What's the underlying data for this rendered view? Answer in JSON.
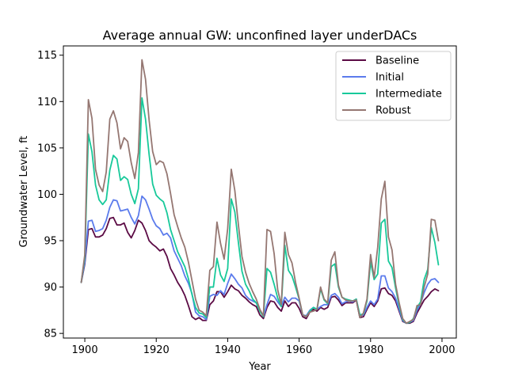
{
  "chart_data": {
    "type": "line",
    "title": "Average annual GW: unconfined layer underDACs",
    "xlabel": "Year",
    "ylabel": "Groundwater Level, ft",
    "xlim": [
      1894,
      2004
    ],
    "ylim": [
      84.5,
      116
    ],
    "xticks": [
      1900,
      1920,
      1940,
      1960,
      1980,
      2000
    ],
    "yticks": [
      85,
      90,
      95,
      100,
      105,
      110,
      115
    ],
    "legend_position": "top-right",
    "x": [
      1899,
      1900,
      1901,
      1902,
      1903,
      1904,
      1905,
      1906,
      1907,
      1908,
      1909,
      1910,
      1911,
      1912,
      1913,
      1914,
      1915,
      1916,
      1917,
      1918,
      1919,
      1920,
      1921,
      1922,
      1923,
      1924,
      1925,
      1926,
      1927,
      1928,
      1929,
      1930,
      1931,
      1932,
      1933,
      1934,
      1935,
      1936,
      1937,
      1938,
      1939,
      1940,
      1941,
      1942,
      1943,
      1944,
      1945,
      1946,
      1947,
      1948,
      1949,
      1950,
      1951,
      1952,
      1953,
      1954,
      1955,
      1956,
      1957,
      1958,
      1959,
      1960,
      1961,
      1962,
      1963,
      1964,
      1965,
      1966,
      1967,
      1968,
      1969,
      1970,
      1971,
      1972,
      1973,
      1974,
      1975,
      1976,
      1977,
      1978,
      1979,
      1980,
      1981,
      1982,
      1983,
      1984,
      1985,
      1986,
      1987,
      1988,
      1989,
      1990,
      1991,
      1992,
      1993,
      1994,
      1995,
      1996,
      1997,
      1998,
      1999
    ],
    "series": [
      {
        "name": "Baseline",
        "color": "#5b0a44",
        "values": [
          90.5,
          92.5,
          96.2,
          96.3,
          95.4,
          95.4,
          95.6,
          96.3,
          97.4,
          97.5,
          96.7,
          96.7,
          96.9,
          95.9,
          95.3,
          96.1,
          97.2,
          96.9,
          96.1,
          95.0,
          94.6,
          94.3,
          93.9,
          94.1,
          93.3,
          92.0,
          91.3,
          90.5,
          89.9,
          89.1,
          88.0,
          86.8,
          86.5,
          86.7,
          86.4,
          86.4,
          88.1,
          88.5,
          89.5,
          89.5,
          88.9,
          89.5,
          90.2,
          89.8,
          89.6,
          89.1,
          88.8,
          88.4,
          88.1,
          87.9,
          87.0,
          86.6,
          87.8,
          88.5,
          88.4,
          87.8,
          87.4,
          88.5,
          87.9,
          88.3,
          88.3,
          87.7,
          86.8,
          86.6,
          87.3,
          87.6,
          87.4,
          87.8,
          87.6,
          87.8,
          88.9,
          89.0,
          88.6,
          88.0,
          88.3,
          88.3,
          88.3,
          88.6,
          86.7,
          86.8,
          87.6,
          88.3,
          87.9,
          88.5,
          89.8,
          89.9,
          89.3,
          89.1,
          88.5,
          87.4,
          86.3,
          86.1,
          86.1,
          86.3,
          87.2,
          87.9,
          88.6,
          89.0,
          89.5,
          89.8,
          89.6
        ]
      },
      {
        "name": "Initial",
        "color": "#5b7bec",
        "values": [
          90.5,
          92.7,
          97.1,
          97.2,
          96.0,
          96.1,
          96.3,
          97.2,
          98.6,
          99.4,
          99.3,
          98.2,
          98.3,
          98.4,
          97.5,
          96.8,
          97.7,
          99.8,
          99.4,
          98.4,
          97.3,
          96.6,
          96.3,
          95.6,
          95.8,
          95.3,
          93.9,
          93.1,
          92.3,
          91.2,
          90.4,
          89.3,
          87.3,
          86.9,
          86.8,
          86.5,
          89.0,
          89.2,
          89.1,
          89.6,
          89.2,
          90.4,
          91.4,
          90.9,
          90.3,
          89.9,
          89.1,
          88.7,
          88.5,
          88.3,
          87.5,
          86.8,
          88.1,
          89.2,
          89.0,
          88.4,
          87.9,
          88.9,
          88.4,
          88.8,
          88.8,
          88.5,
          87.0,
          86.9,
          87.5,
          87.8,
          87.6,
          87.9,
          88.1,
          88.1,
          89.1,
          89.3,
          88.9,
          88.2,
          88.4,
          88.5,
          88.4,
          88.7,
          86.9,
          87.0,
          87.8,
          88.5,
          88.1,
          88.7,
          91.2,
          91.2,
          89.9,
          89.5,
          88.8,
          87.6,
          86.4,
          86.1,
          86.2,
          86.4,
          87.5,
          88.2,
          89.4,
          90.3,
          90.8,
          90.9,
          90.5
        ]
      },
      {
        "name": "Intermediate",
        "color": "#17c99a",
        "values": [
          90.5,
          93.2,
          106.5,
          104.6,
          101.0,
          99.4,
          98.9,
          99.4,
          102.6,
          104.2,
          103.8,
          101.5,
          101.9,
          101.6,
          100.0,
          99.0,
          100.6,
          110.4,
          108.1,
          104.3,
          101.1,
          99.9,
          99.5,
          99.2,
          98.0,
          96.2,
          95.0,
          93.8,
          93.0,
          92.2,
          90.9,
          89.2,
          87.8,
          87.2,
          87.1,
          86.7,
          90.0,
          90.0,
          93.1,
          91.3,
          90.6,
          92.0,
          99.5,
          98.1,
          94.8,
          91.7,
          90.3,
          89.6,
          88.7,
          88.3,
          87.4,
          86.8,
          92.0,
          91.6,
          90.3,
          88.8,
          87.9,
          94.5,
          91.8,
          91.2,
          90.0,
          88.7,
          87.0,
          86.8,
          87.4,
          87.8,
          87.6,
          89.8,
          88.6,
          88.2,
          92.2,
          92.5,
          90.0,
          88.9,
          88.7,
          88.6,
          88.5,
          88.7,
          87.0,
          87.1,
          88.5,
          92.7,
          90.8,
          91.4,
          96.9,
          97.3,
          92.8,
          92.1,
          89.9,
          88.0,
          86.5,
          86.1,
          86.2,
          86.6,
          87.8,
          88.4,
          90.8,
          91.9,
          96.4,
          94.8,
          92.4
        ]
      },
      {
        "name": "Robust",
        "color": "#957772",
        "values": [
          90.5,
          93.5,
          110.2,
          108.2,
          102.7,
          101.0,
          100.3,
          102.4,
          108.1,
          109.0,
          107.7,
          104.9,
          106.1,
          105.7,
          103.4,
          101.7,
          104.5,
          114.5,
          112.4,
          108.0,
          104.6,
          103.2,
          103.6,
          103.4,
          102.2,
          100.1,
          97.8,
          96.5,
          95.3,
          94.3,
          92.7,
          90.7,
          88.7,
          87.5,
          87.3,
          86.9,
          91.8,
          92.2,
          97.0,
          94.7,
          93.0,
          96.3,
          102.7,
          100.4,
          96.7,
          93.3,
          91.6,
          90.4,
          89.5,
          88.7,
          87.6,
          86.9,
          96.2,
          96.0,
          93.6,
          89.7,
          88.1,
          95.9,
          93.5,
          92.6,
          90.5,
          88.8,
          87.0,
          86.8,
          87.3,
          87.4,
          87.6,
          90.0,
          88.7,
          88.3,
          92.9,
          93.8,
          90.2,
          88.9,
          88.6,
          88.5,
          88.5,
          88.6,
          86.7,
          87.2,
          88.7,
          93.5,
          91.0,
          94.3,
          99.5,
          101.4,
          95.4,
          94.0,
          90.3,
          88.3,
          86.6,
          86.1,
          86.3,
          86.5,
          88.0,
          88.1,
          90.0,
          91.4,
          97.3,
          97.2,
          95.0
        ]
      }
    ]
  }
}
